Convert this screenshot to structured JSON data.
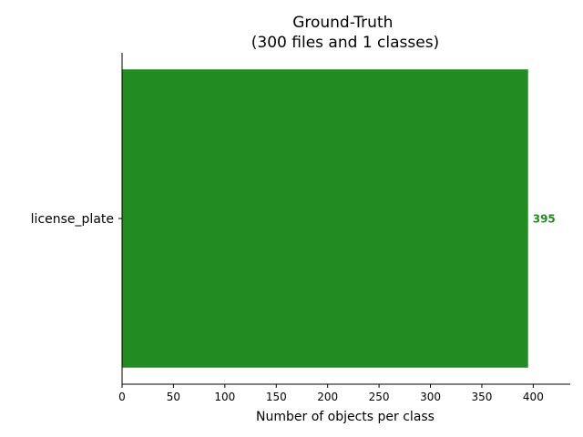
{
  "chart_data": {
    "type": "bar",
    "orientation": "horizontal",
    "title": "Ground-Truth\n(300 files and 1 classes)",
    "categories": [
      "license_plate"
    ],
    "values": [
      395
    ],
    "data_labels": [
      "395"
    ],
    "xlabel": "Number of objects per class",
    "ylabel": "",
    "xlim": [
      0,
      436
    ],
    "xticks": [
      0,
      50,
      100,
      150,
      200,
      250,
      300,
      350,
      400
    ],
    "bar_color": "#228b22",
    "grid": false,
    "legend": "none"
  }
}
